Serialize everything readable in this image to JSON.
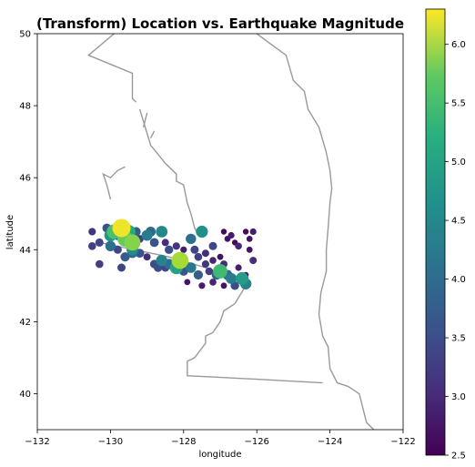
{
  "chart_data": {
    "type": "scatter",
    "title": "(Transform) Location vs. Earthquake Magnitude",
    "xlabel": "longitude",
    "ylabel": "latitude",
    "xlim": [
      -132,
      -122
    ],
    "ylim": [
      39,
      50
    ],
    "xticks": [
      -132,
      -130,
      -128,
      -126,
      -124,
      -122
    ],
    "xtick_labels": [
      "−132",
      "−130",
      "−128",
      "−126",
      "−124",
      "−122"
    ],
    "yticks": [
      40,
      42,
      44,
      46,
      48,
      50
    ],
    "ytick_labels": [
      "40",
      "42",
      "44",
      "46",
      "48",
      "50"
    ],
    "grid": false,
    "colorbar": {
      "min": 2.5,
      "max": 6.3,
      "ticks": [
        2.5,
        3.0,
        3.5,
        4.0,
        4.5,
        5.0,
        5.5,
        6.0
      ],
      "tick_labels": [
        "2.5",
        "3.0",
        "3.5",
        "4.0",
        "4.5",
        "5.0",
        "5.5",
        "6.0"
      ],
      "colormap": "viridis"
    },
    "line_color": "#999999",
    "coastline": [
      [
        -126.0,
        50.0
      ],
      [
        -125.6,
        49.7
      ],
      [
        -125.2,
        49.4
      ],
      [
        -125.0,
        48.7
      ],
      [
        -124.7,
        48.4
      ],
      [
        -124.6,
        47.9
      ],
      [
        -124.3,
        47.4
      ],
      [
        -124.1,
        46.7
      ],
      [
        -124.0,
        46.2
      ],
      [
        -123.95,
        45.7
      ],
      [
        -124.0,
        45.3
      ],
      [
        -124.05,
        44.6
      ],
      [
        -124.1,
        44.0
      ],
      [
        -124.1,
        43.4
      ],
      [
        -124.25,
        42.8
      ],
      [
        -124.3,
        42.2
      ],
      [
        -124.2,
        41.6
      ],
      [
        -124.05,
        41.3
      ],
      [
        -124.0,
        40.7
      ],
      [
        -123.8,
        40.3
      ],
      [
        -123.5,
        40.2
      ],
      [
        -123.2,
        40.0
      ],
      [
        -123.1,
        39.6
      ],
      [
        -123.0,
        39.2
      ],
      [
        -122.8,
        39.0
      ]
    ],
    "plate_boundaries": [
      [
        [
          -129.9,
          50.0
        ],
        [
          -130.6,
          49.4
        ],
        [
          -129.4,
          48.9
        ],
        [
          -129.4,
          48.2
        ],
        [
          -129.3,
          48.1
        ]
      ],
      [
        [
          -129.2,
          47.9
        ],
        [
          -128.9,
          46.9
        ],
        [
          -128.5,
          46.4
        ],
        [
          -128.2,
          46.1
        ],
        [
          -128.2,
          45.9
        ],
        [
          -128.0,
          45.8
        ],
        [
          -127.9,
          45.3
        ],
        [
          -127.8,
          45.0
        ],
        [
          -127.7,
          44.6
        ],
        [
          -127.6,
          44.4
        ]
      ],
      [
        [
          -128.9,
          47.1
        ],
        [
          -128.8,
          47.3
        ]
      ],
      [
        [
          -129.1,
          47.4
        ],
        [
          -129.0,
          47.8
        ]
      ],
      [
        [
          -130.3,
          44.2
        ],
        [
          -128.4,
          43.8
        ],
        [
          -127.4,
          43.5
        ],
        [
          -126.3,
          43.1
        ]
      ],
      [
        [
          -126.3,
          43.0
        ],
        [
          -126.6,
          42.5
        ],
        [
          -126.9,
          42.3
        ],
        [
          -127.0,
          42.0
        ],
        [
          -127.2,
          41.7
        ],
        [
          -127.4,
          41.6
        ],
        [
          -127.4,
          41.4
        ],
        [
          -127.7,
          41.0
        ],
        [
          -127.9,
          40.9
        ],
        [
          -127.9,
          40.5
        ],
        [
          -126.0,
          40.4
        ],
        [
          -124.2,
          40.3
        ]
      ],
      [
        [
          -130.0,
          45.4
        ],
        [
          -130.1,
          45.8
        ],
        [
          -130.2,
          46.1
        ],
        [
          -130.0,
          46.0
        ],
        [
          -129.8,
          46.2
        ],
        [
          -129.6,
          46.3
        ]
      ]
    ],
    "points": [
      {
        "x": -130.5,
        "y": 44.5,
        "m": 3.1
      },
      {
        "x": -130.5,
        "y": 44.1,
        "m": 3.2
      },
      {
        "x": -130.3,
        "y": 44.2,
        "m": 3.3
      },
      {
        "x": -130.1,
        "y": 44.6,
        "m": 3.5
      },
      {
        "x": -130.0,
        "y": 44.4,
        "m": 4.5
      },
      {
        "x": -129.9,
        "y": 44.5,
        "m": 5.2
      },
      {
        "x": -129.8,
        "y": 44.4,
        "m": 3.7
      },
      {
        "x": -129.7,
        "y": 44.6,
        "m": 6.2
      },
      {
        "x": -129.6,
        "y": 44.3,
        "m": 5.4
      },
      {
        "x": -129.5,
        "y": 44.5,
        "m": 4.8
      },
      {
        "x": -129.4,
        "y": 44.2,
        "m": 5.6
      },
      {
        "x": -129.3,
        "y": 44.5,
        "m": 3.6
      },
      {
        "x": -129.2,
        "y": 44.3,
        "m": 3.2
      },
      {
        "x": -129.0,
        "y": 44.4,
        "m": 4.1
      },
      {
        "x": -128.9,
        "y": 44.5,
        "m": 3.8
      },
      {
        "x": -128.8,
        "y": 44.2,
        "m": 3.5
      },
      {
        "x": -128.6,
        "y": 44.5,
        "m": 4.3
      },
      {
        "x": -128.5,
        "y": 44.2,
        "m": 3.0
      },
      {
        "x": -128.4,
        "y": 44.0,
        "m": 3.4
      },
      {
        "x": -128.2,
        "y": 44.1,
        "m": 3.1
      },
      {
        "x": -128.0,
        "y": 44.0,
        "m": 2.8
      },
      {
        "x": -127.8,
        "y": 44.3,
        "m": 3.9
      },
      {
        "x": -127.7,
        "y": 44.0,
        "m": 3.3
      },
      {
        "x": -127.5,
        "y": 44.5,
        "m": 4.4
      },
      {
        "x": -127.4,
        "y": 43.9,
        "m": 3.0
      },
      {
        "x": -127.2,
        "y": 43.7,
        "m": 2.9
      },
      {
        "x": -127.0,
        "y": 43.8,
        "m": 2.7
      },
      {
        "x": -126.9,
        "y": 44.5,
        "m": 2.6
      },
      {
        "x": -126.8,
        "y": 44.3,
        "m": 2.7
      },
      {
        "x": -126.7,
        "y": 44.4,
        "m": 2.8
      },
      {
        "x": -126.6,
        "y": 44.2,
        "m": 2.6
      },
      {
        "x": -126.5,
        "y": 44.1,
        "m": 2.9
      },
      {
        "x": -126.3,
        "y": 44.5,
        "m": 2.6
      },
      {
        "x": -126.2,
        "y": 44.3,
        "m": 2.7
      },
      {
        "x": -126.1,
        "y": 44.5,
        "m": 2.8
      },
      {
        "x": -126.2,
        "y": 44.0,
        "m": 2.7
      },
      {
        "x": -126.1,
        "y": 43.7,
        "m": 3.0
      },
      {
        "x": -126.3,
        "y": 43.3,
        "m": 2.6
      },
      {
        "x": -126.5,
        "y": 43.5,
        "m": 2.8
      },
      {
        "x": -126.4,
        "y": 43.2,
        "m": 4.6
      },
      {
        "x": -126.3,
        "y": 43.05,
        "m": 4.2
      },
      {
        "x": -126.6,
        "y": 43.0,
        "m": 3.4
      },
      {
        "x": -126.8,
        "y": 43.3,
        "m": 3.8
      },
      {
        "x": -126.9,
        "y": 43.0,
        "m": 2.7
      },
      {
        "x": -127.0,
        "y": 43.4,
        "m": 5.1
      },
      {
        "x": -127.1,
        "y": 43.3,
        "m": 3.7
      },
      {
        "x": -127.2,
        "y": 43.1,
        "m": 2.9
      },
      {
        "x": -127.3,
        "y": 43.4,
        "m": 3.2
      },
      {
        "x": -127.4,
        "y": 43.6,
        "m": 3.1
      },
      {
        "x": -127.6,
        "y": 43.3,
        "m": 3.6
      },
      {
        "x": -127.8,
        "y": 43.5,
        "m": 4.0
      },
      {
        "x": -127.9,
        "y": 43.1,
        "m": 2.7
      },
      {
        "x": -128.0,
        "y": 43.4,
        "m": 3.5
      },
      {
        "x": -128.1,
        "y": 43.7,
        "m": 5.8
      },
      {
        "x": -128.2,
        "y": 43.5,
        "m": 4.7
      },
      {
        "x": -128.4,
        "y": 43.6,
        "m": 3.9
      },
      {
        "x": -128.5,
        "y": 43.5,
        "m": 3.3
      },
      {
        "x": -128.6,
        "y": 43.7,
        "m": 4.2
      },
      {
        "x": -128.8,
        "y": 43.6,
        "m": 3.4
      },
      {
        "x": -129.0,
        "y": 43.8,
        "m": 3.0
      },
      {
        "x": -129.2,
        "y": 43.9,
        "m": 3.5
      },
      {
        "x": -129.4,
        "y": 43.9,
        "m": 3.7
      },
      {
        "x": -129.6,
        "y": 43.8,
        "m": 3.6
      },
      {
        "x": -129.8,
        "y": 44.0,
        "m": 3.3
      },
      {
        "x": -130.0,
        "y": 44.1,
        "m": 3.9
      },
      {
        "x": -130.3,
        "y": 43.6,
        "m": 3.2
      },
      {
        "x": -129.7,
        "y": 43.5,
        "m": 3.3
      },
      {
        "x": -129.4,
        "y": 44.0,
        "m": 4.3
      },
      {
        "x": -128.7,
        "y": 43.5,
        "m": 3.4
      },
      {
        "x": -127.6,
        "y": 43.8,
        "m": 3.2
      },
      {
        "x": -127.5,
        "y": 43.0,
        "m": 2.8
      },
      {
        "x": -126.7,
        "y": 43.2,
        "m": 4.1
      },
      {
        "x": -126.9,
        "y": 43.6,
        "m": 3.0
      },
      {
        "x": -127.2,
        "y": 44.1,
        "m": 3.3
      }
    ]
  }
}
